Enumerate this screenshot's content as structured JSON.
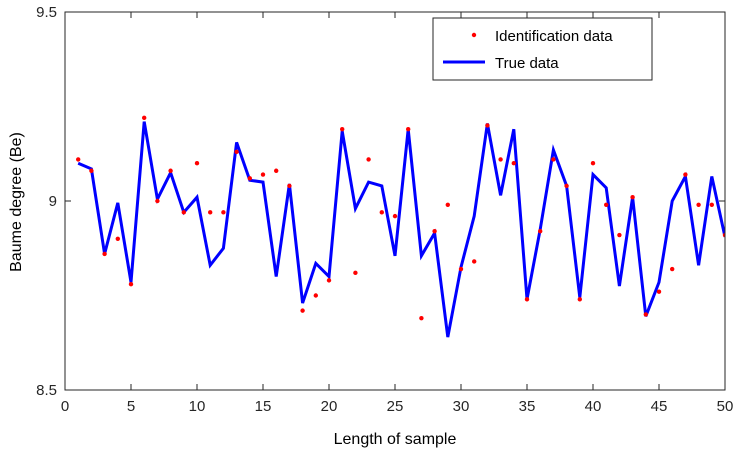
{
  "chart_data": {
    "type": "line",
    "title": "",
    "xlabel": "Length of sample",
    "ylabel": "Baume degree (Be)",
    "xlim": [
      0,
      50
    ],
    "ylim": [
      8.5,
      9.5
    ],
    "xticks": [
      0,
      5,
      10,
      15,
      20,
      25,
      30,
      35,
      40,
      45,
      50
    ],
    "yticks": [
      8.5,
      9,
      9.5
    ],
    "ytick_labels": [
      "8.5",
      "9",
      "9.5"
    ],
    "grid": false,
    "legend_position": "top-right",
    "series": [
      {
        "name": "Identification data",
        "style": "scatter",
        "color": "#ff0000",
        "x": [
          1,
          2,
          3,
          4,
          5,
          6,
          7,
          8,
          9,
          10,
          11,
          12,
          13,
          14,
          15,
          16,
          17,
          18,
          19,
          20,
          21,
          22,
          23,
          24,
          25,
          26,
          27,
          28,
          29,
          30,
          31,
          32,
          33,
          34,
          35,
          36,
          37,
          38,
          39,
          40,
          41,
          42,
          43,
          44,
          45,
          46,
          47,
          48,
          49,
          50
        ],
        "values": [
          9.11,
          9.08,
          8.86,
          8.9,
          8.78,
          9.22,
          9.0,
          9.08,
          8.97,
          9.1,
          8.97,
          8.97,
          9.13,
          9.06,
          9.07,
          9.08,
          9.04,
          8.71,
          8.75,
          8.79,
          9.19,
          8.81,
          9.11,
          8.97,
          8.96,
          9.19,
          8.69,
          8.92,
          8.99,
          8.82,
          8.84,
          9.2,
          9.11,
          9.1,
          8.74,
          8.92,
          9.11,
          9.04,
          8.74,
          9.1,
          8.99,
          8.91,
          9.01,
          8.7,
          8.76,
          8.82,
          9.07,
          8.99,
          8.99,
          8.91
        ]
      },
      {
        "name": "True data",
        "style": "line",
        "color": "#0000ff",
        "x": [
          1,
          2,
          3,
          4,
          5,
          6,
          7,
          8,
          9,
          10,
          11,
          12,
          13,
          14,
          15,
          16,
          17,
          18,
          19,
          20,
          21,
          22,
          23,
          24,
          25,
          26,
          27,
          28,
          29,
          30,
          31,
          32,
          33,
          34,
          35,
          36,
          37,
          38,
          39,
          40,
          41,
          42,
          43,
          44,
          45,
          46,
          47,
          48,
          49,
          50
        ],
        "values": [
          9.1,
          9.085,
          8.86,
          8.995,
          8.785,
          9.21,
          9.005,
          9.075,
          8.97,
          9.01,
          8.83,
          8.875,
          9.155,
          9.055,
          9.05,
          8.8,
          9.045,
          8.73,
          8.835,
          8.8,
          9.185,
          8.98,
          9.05,
          9.04,
          8.855,
          9.19,
          8.855,
          8.915,
          8.64,
          8.825,
          8.96,
          9.205,
          9.015,
          9.19,
          8.74,
          8.925,
          9.135,
          9.04,
          8.745,
          9.07,
          9.035,
          8.775,
          9.01,
          8.695,
          8.785,
          9.0,
          9.065,
          8.83,
          9.065,
          8.905
        ]
      }
    ]
  }
}
